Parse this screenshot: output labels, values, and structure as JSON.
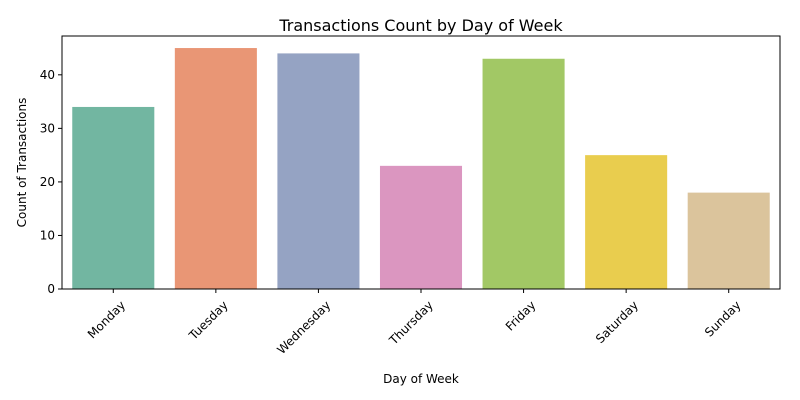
{
  "chart_data": {
    "type": "bar",
    "title": "Transactions Count by Day of Week",
    "xlabel": "Day of Week",
    "ylabel": "Count of Transactions",
    "categories": [
      "Monday",
      "Tuesday",
      "Wednesday",
      "Thursday",
      "Friday",
      "Saturday",
      "Sunday"
    ],
    "values": [
      34,
      45,
      44,
      23,
      43,
      25,
      18
    ],
    "colors": [
      "#72b6a1",
      "#e99675",
      "#95a3c3",
      "#db96c0",
      "#a2c865",
      "#e9cd4e",
      "#dbc49c"
    ],
    "ylim": [
      0,
      47.25
    ],
    "yticks": [
      0,
      10,
      20,
      30,
      40
    ],
    "grid": false,
    "legend": "none"
  }
}
